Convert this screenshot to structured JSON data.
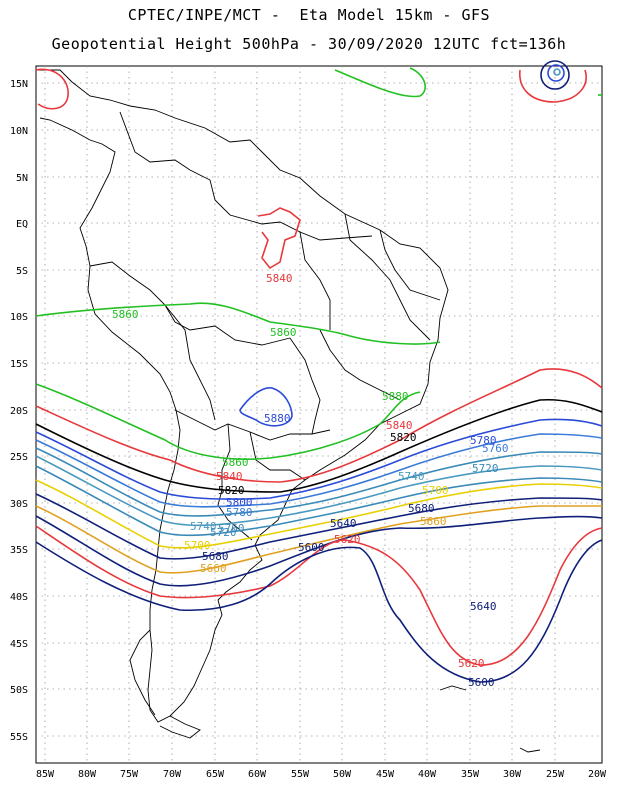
{
  "title": {
    "line1": "CPTEC/INPE/MCT -  Eta Model 15km - GFS",
    "line2": "Geopotential Height 500hPa - 30/09/2020 12UTC fct=136h"
  },
  "axes": {
    "lon_labels": [
      "85W",
      "80W",
      "75W",
      "70W",
      "65W",
      "60W",
      "55W",
      "50W",
      "45W",
      "40W",
      "35W",
      "30W",
      "25W",
      "20W"
    ],
    "lat_labels": [
      "15N",
      "10N",
      "5N",
      "EQ",
      "5S",
      "10S",
      "15S",
      "20S",
      "25S",
      "30S",
      "35S",
      "40S",
      "45S",
      "50S",
      "55S"
    ]
  },
  "contour_labels": [
    {
      "text": "5840",
      "color": "#e8383c"
    },
    {
      "text": "5860",
      "color": "#22c022"
    },
    {
      "text": "5860",
      "color": "#22c022"
    },
    {
      "text": "5880",
      "color": "#22c022"
    },
    {
      "text": "5880",
      "color": "#2a4ad8"
    },
    {
      "text": "5840",
      "color": "#e8383c"
    },
    {
      "text": "5820",
      "color": "#000000"
    },
    {
      "text": "5780",
      "color": "#2a4ad8"
    },
    {
      "text": "5760",
      "color": "#3a7ad8"
    },
    {
      "text": "5720",
      "color": "#3a8ab8"
    },
    {
      "text": "5740",
      "color": "#4a9ac0"
    },
    {
      "text": "5700",
      "color": "#e8d000"
    },
    {
      "text": "5680",
      "color": "#10207a"
    },
    {
      "text": "5660",
      "color": "#e0a020"
    },
    {
      "text": "5860",
      "color": "#22c022"
    },
    {
      "text": "5840",
      "color": "#e8383c"
    },
    {
      "text": "5820",
      "color": "#000000"
    },
    {
      "text": "5800",
      "color": "#2a4ad8"
    },
    {
      "text": "5780",
      "color": "#3a7ad8"
    },
    {
      "text": "5760",
      "color": "#3a8ab8"
    },
    {
      "text": "5740",
      "color": "#4a9ac0"
    },
    {
      "text": "5720",
      "color": "#3a8ab8"
    },
    {
      "text": "5700",
      "color": "#e8d000"
    },
    {
      "text": "5680",
      "color": "#10207a"
    },
    {
      "text": "5660",
      "color": "#e0a020"
    },
    {
      "text": "5640",
      "color": "#10207a"
    },
    {
      "text": "5620",
      "color": "#e8383c"
    },
    {
      "text": "5600",
      "color": "#10207a"
    },
    {
      "text": "5640",
      "color": "#10207a"
    },
    {
      "text": "5620",
      "color": "#e8383c"
    },
    {
      "text": "5600",
      "color": "#10207a"
    }
  ]
}
